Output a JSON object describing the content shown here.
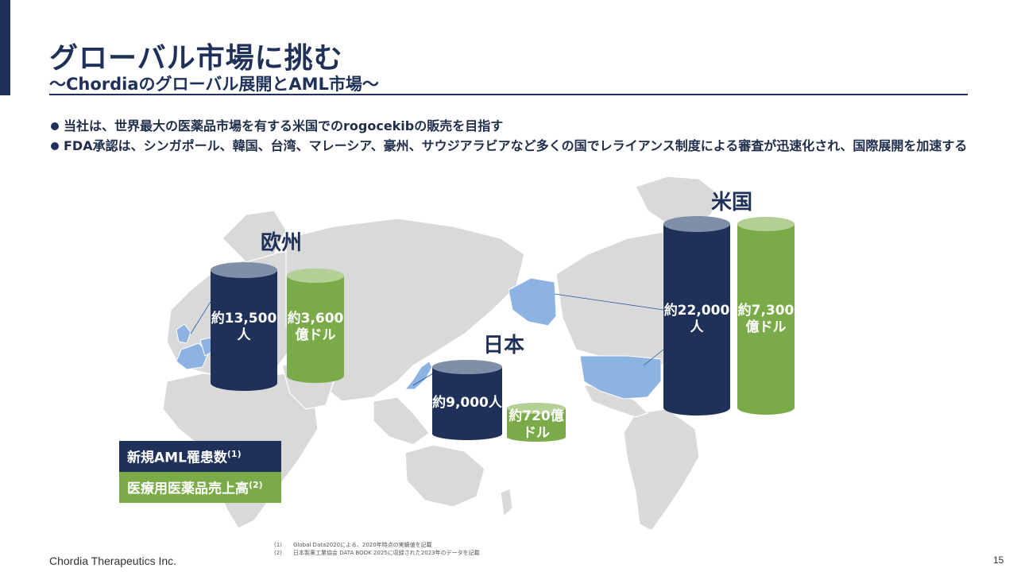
{
  "header": {
    "title": "グローバル市場に挑む",
    "subtitle": "〜Chordiaのグローバル展開とAML市場〜"
  },
  "bullets": [
    "当社は、世界最大の医薬品市場を有する米国でのrogocekibの販売を目指す",
    "FDA承認は、シンガポール、韓国、台湾、マレーシア、豪州、サウジアラビアなど多くの国でレライアンス制度による審査が迅速化され、国際展開を加速する"
  ],
  "regions": {
    "europe": {
      "label": "欧州",
      "patients": "約13,500\n人",
      "sales": "約3,600\n億ドル"
    },
    "japan": {
      "label": "日本",
      "patients": "約9,000人",
      "sales": "約720億\nドル"
    },
    "usa": {
      "label": "米国",
      "patients": "約22,000\n人",
      "sales": "約7,300\n億ドル"
    }
  },
  "legend": {
    "patients": "新規AML罹患数",
    "patients_note": "(1)",
    "sales": "医療用医薬品売上高",
    "sales_note": "(2)"
  },
  "footnotes": [
    {
      "num": "(1)",
      "text": "Global Data2020による、2020年時点の実績値を記載"
    },
    {
      "num": "(2)",
      "text": "日本製薬工業協会 DATA BOOK 2025に収録された2023年のデータを記載"
    }
  ],
  "footer": {
    "company": "Chordia Therapeutics Inc.",
    "page": "15"
  },
  "colors": {
    "navy": "#1f3158",
    "green": "#7aab48",
    "map_gray": "#d9d9d9",
    "highlight_blue": "#8db3e2"
  }
}
